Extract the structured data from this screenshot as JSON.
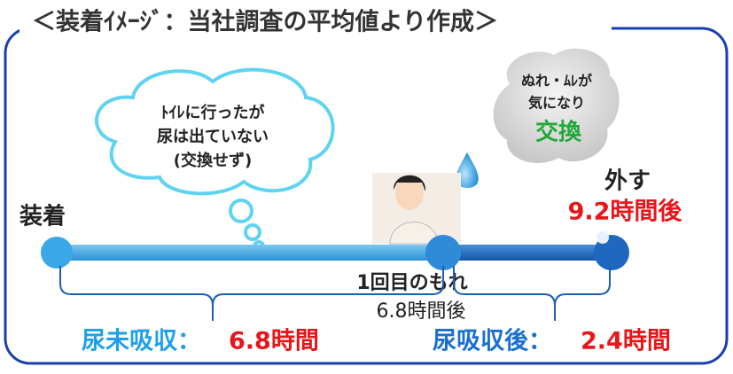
{
  "title": "＜装着ｲﾒｰｼﾞ：当社調査の平均値より作成＞",
  "thought_bubble": {
    "lines": [
      "ﾄｲﾚに行ったが",
      "尿は出ていない",
      "(交換せず)"
    ]
  },
  "change_bubble": {
    "lines": [
      "ぬれ・ﾑﾚが",
      "気になり"
    ],
    "action": "交換"
  },
  "timeline": {
    "start": "装着",
    "leak": {
      "label": "1回目のもれ",
      "time": "6.8時間後"
    },
    "end": {
      "label": "外す",
      "time": "9.2時間後"
    }
  },
  "durations": [
    {
      "label": "尿未吸収：",
      "value": "6.8時間"
    },
    {
      "label": "尿吸収後：",
      "value": "2.4時間"
    }
  ]
}
